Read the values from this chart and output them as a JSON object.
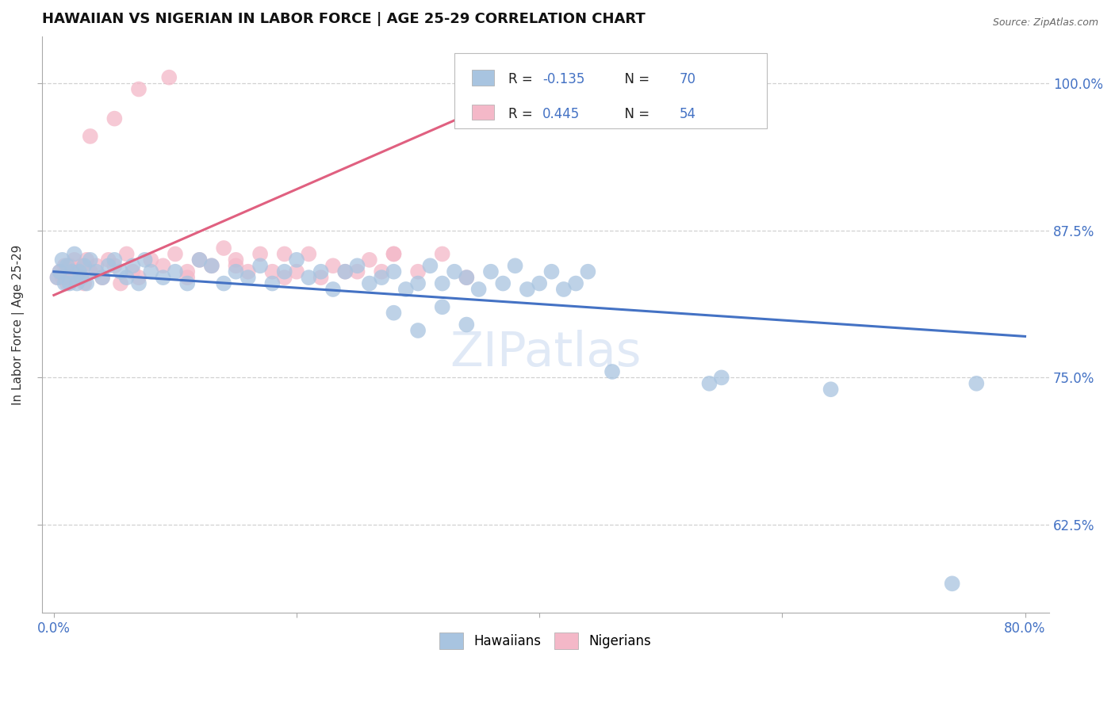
{
  "title": "HAWAIIAN VS NIGERIAN IN LABOR FORCE | AGE 25-29 CORRELATION CHART",
  "source_text": "Source: ZipAtlas.com",
  "ylabel": "In Labor Force | Age 25-29",
  "x_tick_labels": [
    "0.0%",
    "",
    "",
    "",
    "80.0%"
  ],
  "x_tick_values": [
    0.0,
    20.0,
    40.0,
    60.0,
    80.0
  ],
  "y_tick_labels": [
    "62.5%",
    "75.0%",
    "87.5%",
    "100.0%"
  ],
  "y_tick_values": [
    62.5,
    75.0,
    87.5,
    100.0
  ],
  "xlim": [
    -1.0,
    82.0
  ],
  "ylim": [
    55.0,
    104.0
  ],
  "hawaiian_R": -0.135,
  "hawaiian_N": 70,
  "nigerian_R": 0.445,
  "nigerian_N": 54,
  "hawaiian_color": "#a8c4e0",
  "nigerian_color": "#f4b8c8",
  "hawaiian_line_color": "#4472c4",
  "nigerian_line_color": "#e06080",
  "legend_label_hawaiian": "Hawaiians",
  "legend_label_nigerian": "Nigerians",
  "background_color": "#ffffff",
  "grid_color": "#cccccc",
  "hawaiian_x": [
    0.3,
    0.5,
    0.7,
    0.9,
    1.1,
    1.3,
    1.5,
    1.7,
    1.9,
    2.1,
    2.3,
    2.5,
    2.7,
    3.0,
    3.5,
    4.0,
    4.5,
    5.0,
    5.5,
    6.0,
    6.5,
    7.0,
    7.5,
    8.0,
    9.0,
    10.0,
    11.0,
    12.0,
    13.0,
    14.0,
    15.0,
    16.0,
    17.0,
    18.0,
    19.0,
    20.0,
    21.0,
    22.0,
    23.0,
    24.0,
    25.0,
    26.0,
    27.0,
    28.0,
    29.0,
    30.0,
    31.0,
    32.0,
    33.0,
    34.0,
    35.0,
    36.0,
    37.0,
    38.0,
    39.0,
    40.0,
    41.0,
    42.0,
    43.0,
    44.0,
    28.0,
    30.0,
    32.0,
    34.0,
    46.0,
    54.0,
    55.0,
    64.0,
    74.0,
    76.0
  ],
  "hawaiian_y": [
    83.5,
    84.0,
    85.0,
    83.0,
    84.5,
    83.0,
    84.0,
    85.5,
    83.0,
    84.0,
    83.5,
    84.5,
    83.0,
    85.0,
    84.0,
    83.5,
    84.5,
    85.0,
    84.0,
    83.5,
    84.5,
    83.0,
    85.0,
    84.0,
    83.5,
    84.0,
    83.0,
    85.0,
    84.5,
    83.0,
    84.0,
    83.5,
    84.5,
    83.0,
    84.0,
    85.0,
    83.5,
    84.0,
    82.5,
    84.0,
    84.5,
    83.0,
    83.5,
    84.0,
    82.5,
    83.0,
    84.5,
    83.0,
    84.0,
    83.5,
    82.5,
    84.0,
    83.0,
    84.5,
    82.5,
    83.0,
    84.0,
    82.5,
    83.0,
    84.0,
    80.5,
    79.0,
    81.0,
    79.5,
    75.5,
    74.5,
    75.0,
    74.0,
    57.5,
    74.5
  ],
  "nigerian_x": [
    0.3,
    0.5,
    0.7,
    0.9,
    1.1,
    1.3,
    1.5,
    1.7,
    1.9,
    2.1,
    2.3,
    2.5,
    2.7,
    3.0,
    3.5,
    4.0,
    4.5,
    5.0,
    5.5,
    6.0,
    6.5,
    7.0,
    8.0,
    9.0,
    10.0,
    11.0,
    12.0,
    13.0,
    14.0,
    15.0,
    16.0,
    17.0,
    18.0,
    19.0,
    20.0,
    21.0,
    22.0,
    23.0,
    25.0,
    26.0,
    27.0,
    28.0,
    30.0,
    32.0,
    34.0,
    11.0,
    15.0,
    19.0,
    24.0,
    28.0,
    3.0,
    5.0,
    7.0,
    9.5
  ],
  "nigerian_y": [
    83.5,
    84.0,
    83.5,
    84.5,
    83.0,
    84.5,
    83.5,
    85.0,
    84.0,
    83.5,
    84.5,
    83.0,
    85.0,
    84.0,
    84.5,
    83.5,
    85.0,
    84.5,
    83.0,
    85.5,
    84.0,
    83.5,
    85.0,
    84.5,
    85.5,
    84.0,
    85.0,
    84.5,
    86.0,
    84.5,
    84.0,
    85.5,
    84.0,
    85.5,
    84.0,
    85.5,
    83.5,
    84.5,
    84.0,
    85.0,
    84.0,
    85.5,
    84.0,
    85.5,
    83.5,
    83.5,
    85.0,
    83.5,
    84.0,
    85.5,
    95.5,
    97.0,
    99.5,
    100.5
  ]
}
